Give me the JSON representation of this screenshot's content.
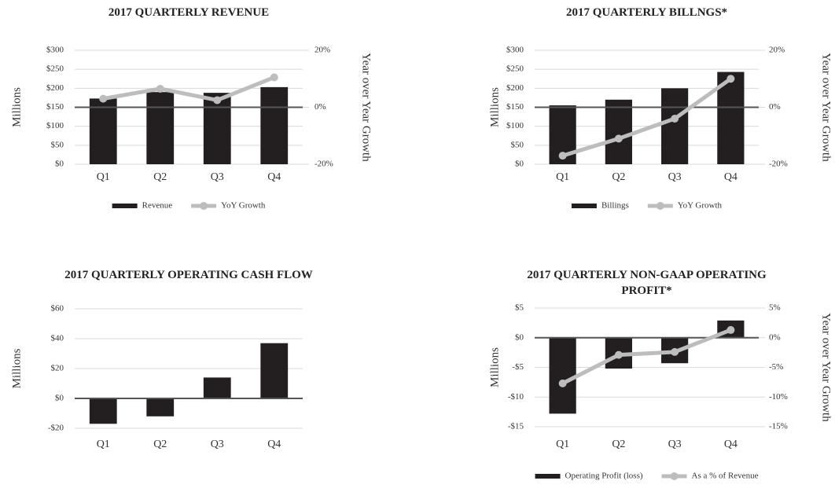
{
  "chart_data": [
    {
      "type": "bar",
      "title": "2017 QUARTERLY REVENUE",
      "ylabel": "Millions",
      "y2label": "Year over Year Growth",
      "categories": [
        "Q1",
        "Q2",
        "Q3",
        "Q4"
      ],
      "series": [
        {
          "name": "Revenue",
          "color": "#231f20",
          "values": [
            173,
            190,
            188,
            203
          ]
        },
        {
          "name": "YoY Growth",
          "color": "#bdbdbd",
          "type": "line",
          "axis": "y2",
          "values": [
            3,
            6.5,
            2.5,
            10.5
          ]
        }
      ],
      "ylim": [
        0,
        300
      ],
      "yticks": [
        {
          "value": 0,
          "label": "$0"
        },
        {
          "value": 50,
          "label": "$50"
        },
        {
          "value": 100,
          "label": "$100"
        },
        {
          "value": 150,
          "label": "$150"
        },
        {
          "value": 200,
          "label": "$200"
        },
        {
          "value": 250,
          "label": "$250"
        },
        {
          "value": 300,
          "label": "$300"
        }
      ],
      "y2lim": [
        -20,
        20
      ],
      "y2ticks": [
        {
          "value": -20,
          "label": "-20%"
        },
        {
          "value": 0,
          "label": "0%"
        },
        {
          "value": 20,
          "label": "20%"
        }
      ],
      "grid": true,
      "legend": "bottom"
    },
    {
      "type": "bar",
      "title": "2017 QUARTERLY BILLNGS*",
      "ylabel": "Millions",
      "y2label": "Year over Year Growth",
      "categories": [
        "Q1",
        "Q2",
        "Q3",
        "Q4"
      ],
      "series": [
        {
          "name": "Billings",
          "color": "#231f20",
          "values": [
            155,
            170,
            200,
            243
          ]
        },
        {
          "name": "YoY Growth",
          "color": "#bdbdbd",
          "type": "line",
          "axis": "y2",
          "values": [
            -17,
            -11,
            -4,
            10
          ]
        }
      ],
      "ylim": [
        0,
        300
      ],
      "yticks": [
        {
          "value": 0,
          "label": "$0"
        },
        {
          "value": 50,
          "label": "$50"
        },
        {
          "value": 100,
          "label": "$100"
        },
        {
          "value": 150,
          "label": "$150"
        },
        {
          "value": 200,
          "label": "$200"
        },
        {
          "value": 250,
          "label": "$250"
        },
        {
          "value": 300,
          "label": "$300"
        }
      ],
      "y2lim": [
        -20,
        20
      ],
      "y2ticks": [
        {
          "value": -20,
          "label": "-20%"
        },
        {
          "value": 0,
          "label": "0%"
        },
        {
          "value": 20,
          "label": "20%"
        }
      ],
      "grid": true,
      "legend": "bottom"
    },
    {
      "type": "bar",
      "title": "2017 QUARTERLY OPERATING CASH FLOW",
      "ylabel": "Millions",
      "categories": [
        "Q1",
        "Q2",
        "Q3",
        "Q4"
      ],
      "series": [
        {
          "color": "#231f20",
          "values": [
            -17,
            -12,
            14,
            37
          ]
        }
      ],
      "ylim": [
        -20,
        60
      ],
      "yticks": [
        {
          "value": -20,
          "label": "-$20"
        },
        {
          "value": 0,
          "label": "$0"
        },
        {
          "value": 20,
          "label": "$20"
        },
        {
          "value": 40,
          "label": "$40"
        },
        {
          "value": 60,
          "label": "$60"
        }
      ],
      "grid": true
    },
    {
      "type": "bar",
      "title": "2017 QUARTERLY NON-GAAP OPERATING PROFIT*",
      "ylabel": "Millions",
      "y2label": "Year over Year Growth",
      "categories": [
        "Q1",
        "Q2",
        "Q3",
        "Q4"
      ],
      "series": [
        {
          "name": "Operating Profit (loss)",
          "color": "#231f20",
          "values": [
            -12.8,
            -5.2,
            -4.3,
            2.9
          ]
        },
        {
          "name": "As a % of Revenue",
          "color": "#bdbdbd",
          "type": "line",
          "axis": "y2",
          "values": [
            -7.7,
            -2.9,
            -2.4,
            1.3
          ]
        }
      ],
      "ylim": [
        -15,
        5
      ],
      "yticks": [
        {
          "value": -15,
          "label": "-$15"
        },
        {
          "value": -10,
          "label": "-$10"
        },
        {
          "value": -5,
          "label": "-$5"
        },
        {
          "value": 0,
          "label": "$0"
        },
        {
          "value": 5,
          "label": "$5"
        }
      ],
      "y2lim": [
        -15,
        5
      ],
      "y2ticks": [
        {
          "value": -15,
          "label": "-15%"
        },
        {
          "value": -10,
          "label": "-10%"
        },
        {
          "value": -5,
          "label": "-5%"
        },
        {
          "value": 0,
          "label": "0%"
        },
        {
          "value": 5,
          "label": "5%"
        }
      ],
      "grid": true,
      "legend": "bottom"
    }
  ]
}
